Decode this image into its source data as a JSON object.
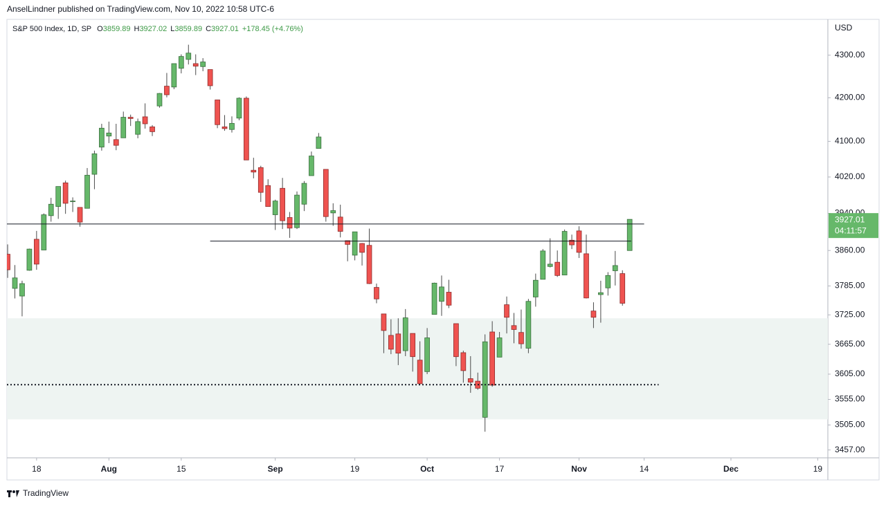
{
  "header": {
    "published": "AnselLindner published on TradingView.com, Nov 10, 2022 10:58 UTC-6",
    "brand": "TradingView"
  },
  "chart_data": {
    "type": "candlestick",
    "title": "S&P 500 Index, 1D, SP",
    "ohlc_labels": [
      "O",
      "H",
      "L",
      "C"
    ],
    "change": "+178.45 (+4.76%)",
    "currency": "USD",
    "countdown": "04:11:57",
    "log_scale": true,
    "grid": false,
    "up_color": "#66b86a",
    "down_color": "#ef5350",
    "open": [
      3852,
      3780,
      3764,
      3818,
      3884,
      3861,
      3935,
      3955,
      4007,
      3966,
      3953,
      3951,
      4026,
      4087,
      4112,
      4104,
      4108,
      4155,
      4116,
      4156,
      4133,
      4181,
      4227,
      4225,
      4269,
      4290,
      4280,
      4273,
      4266,
      4195,
      4133,
      4127,
      4153,
      4199,
      4035,
      4041,
      4001,
      3937,
      3995,
      3931,
      3909,
      3960,
      4023,
      4084,
      4037,
      3941,
      3932,
      3881,
      3850,
      3875,
      3871,
      3782,
      3727,
      3683,
      3686,
      3652,
      3687,
      3633,
      3610,
      3726,
      3753,
      3772,
      3707,
      3648,
      3596,
      3591,
      3520,
      3690,
      3639,
      3746,
      3703,
      3689,
      3657,
      3762,
      3799,
      3826,
      3835,
      3808,
      3882,
      3902,
      3853,
      3733,
      3767,
      3781,
      3817,
      3811,
      3859.89
    ],
    "high": [
      3873,
      3829,
      3796,
      3864,
      3902,
      3940,
      3974,
      3999,
      4012,
      3975,
      3953,
      4040,
      4079,
      4140,
      4145,
      4140,
      4168,
      4161,
      4152,
      4187,
      4137,
      4211,
      4258,
      4280,
      4302,
      4325,
      4302,
      4293,
      4266,
      4195,
      4160,
      4157,
      4201,
      4203,
      4063,
      4045,
      4015,
      3970,
      4018,
      3943,
      3988,
      4011,
      4077,
      4119,
      4037,
      3962,
      3959,
      3881,
      3900,
      3876,
      3907,
      3790,
      3727,
      3716,
      3718,
      3737,
      3687,
      3671,
      3698,
      3792,
      3807,
      3798,
      3707,
      3652,
      3641,
      3608,
      3685,
      3712,
      3690,
      3763,
      3729,
      3736,
      3758,
      3811,
      3863,
      3886,
      3860,
      3905,
      3894,
      3912,
      3894,
      3751,
      3796,
      3814,
      3859,
      3818,
      3927.02
    ],
    "low": [
      3802,
      3759,
      3722,
      3817,
      3819,
      3861,
      3922,
      3928,
      3939,
      3943,
      3911,
      3951,
      3993,
      4079,
      4096,
      4080,
      4108,
      4135,
      4107,
      4129,
      4112,
      4177,
      4201,
      4220,
      4257,
      4278,
      4253,
      4262,
      4219,
      4130,
      4124,
      4120,
      4148,
      4058,
      4017,
      3965,
      3955,
      3904,
      3906,
      3887,
      3906,
      3945,
      4023,
      4084,
      3922,
      3913,
      3888,
      3837,
      3839,
      3828,
      3789,
      3749,
      3647,
      3645,
      3623,
      3641,
      3610,
      3584,
      3605,
      3726,
      3723,
      3739,
      3621,
      3588,
      3568,
      3574,
      3492,
      3580,
      3639,
      3687,
      3667,
      3656,
      3647,
      3742,
      3799,
      3824,
      3804,
      3808,
      3863,
      3844,
      3759,
      3698,
      3709,
      3765,
      3786,
      3744,
      3859.89
    ],
    "close": [
      3819,
      3802,
      3790,
      3863,
      3831,
      3937,
      3960,
      3999,
      3962,
      3967,
      3921,
      4024,
      4072,
      4130,
      4119,
      4091,
      4155,
      4152,
      4145,
      4140,
      4122,
      4210,
      4207,
      4280,
      4297,
      4305,
      4274,
      4284,
      4228,
      4138,
      4129,
      4141,
      4199,
      4058,
      4031,
      3986,
      3955,
      3967,
      3924,
      3908,
      3980,
      4006,
      4067,
      4110,
      3933,
      3946,
      3901,
      3873,
      3900,
      3856,
      3790,
      3758,
      3693,
      3655,
      3647,
      3719,
      3640,
      3586,
      3678,
      3791,
      3783,
      3745,
      3640,
      3612,
      3589,
      3577,
      3670,
      3583,
      3678,
      3720,
      3695,
      3666,
      3753,
      3797,
      3859,
      3831,
      3807,
      3901,
      3872,
      3856,
      3760,
      3720,
      3771,
      3807,
      3828,
      3749,
      3927.01
    ],
    "xlim": [
      -0.1,
      113.4
    ],
    "xticks": [
      {
        "value": 4,
        "label": "18"
      },
      {
        "value": 14,
        "label": "Aug"
      },
      {
        "value": 24,
        "label": "15"
      },
      {
        "value": 37,
        "label": "Sep"
      },
      {
        "value": 48,
        "label": "19"
      },
      {
        "value": 58,
        "label": "Oct"
      },
      {
        "value": 68,
        "label": "17"
      },
      {
        "value": 79,
        "label": "Nov"
      },
      {
        "value": 88,
        "label": "14"
      },
      {
        "value": 100,
        "label": "Dec"
      },
      {
        "value": 112,
        "label": "19"
      }
    ],
    "ylim": [
      3442,
      4386
    ],
    "yticks": [
      {
        "value": 4300,
        "label": "4300.00"
      },
      {
        "value": 4200,
        "label": "4200.00"
      },
      {
        "value": 4100,
        "label": "4100.00"
      },
      {
        "value": 4020,
        "label": "4020.00"
      },
      {
        "value": 3940,
        "label": "3940.00"
      },
      {
        "value": 3860,
        "label": "3860.00"
      },
      {
        "value": 3785,
        "label": "3785.00"
      },
      {
        "value": 3725,
        "label": "3725.00"
      },
      {
        "value": 3665,
        "label": "3665.00"
      },
      {
        "value": 3605,
        "label": "3605.00"
      },
      {
        "value": 3555,
        "label": "3555.00"
      },
      {
        "value": 3505,
        "label": "3505.00"
      },
      {
        "value": 3457,
        "label": "3457.00"
      }
    ],
    "zone": {
      "low": 3516,
      "high": 3718,
      "color": "#eef4f2"
    },
    "lines": [
      {
        "value": 3917,
        "start": -0.1,
        "end": 88,
        "style": "solid"
      },
      {
        "value": 3880,
        "start": 28,
        "end": 86.2,
        "style": "solid"
      },
      {
        "value": 3584,
        "start": -0.1,
        "end": 90,
        "style": "dotted"
      }
    ]
  }
}
